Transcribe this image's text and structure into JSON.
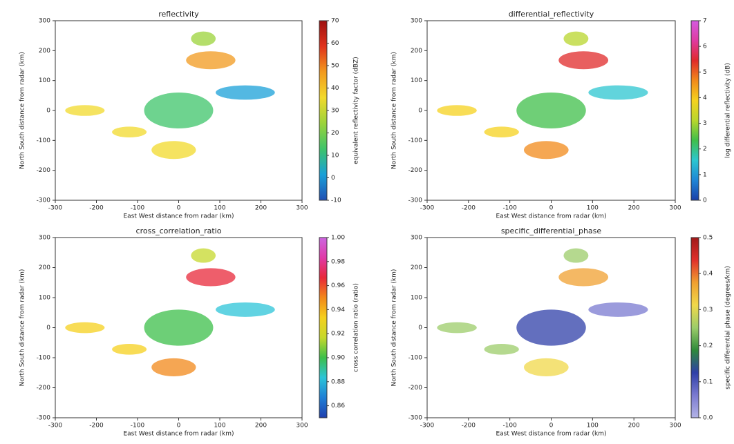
{
  "chart_data": [
    {
      "type": "radar",
      "title": "reflectivity",
      "xlabel": "East West distance from radar (km)",
      "ylabel": "North South distance from radar (km)",
      "xlim": [
        -300,
        300
      ],
      "ylim": [
        -300,
        300
      ],
      "xticks": [
        -300,
        -200,
        -100,
        0,
        100,
        200,
        300
      ],
      "yticks": [
        -300,
        -200,
        -100,
        0,
        100,
        200,
        300
      ],
      "colorbar": {
        "label": "equivalent reflectivity factor (dBZ)",
        "lim": [
          -10,
          70
        ],
        "ticks": [
          -10,
          0,
          10,
          20,
          30,
          40,
          50,
          60,
          70
        ],
        "colormap": [
          "#1f4fb4",
          "#19a0d8",
          "#3ec46a",
          "#9bd33a",
          "#f2d92b",
          "#f29a1e",
          "#e0321c",
          "#9e1010"
        ]
      }
    },
    {
      "type": "radar",
      "title": "differential_reflectivity",
      "xlabel": "East West distance from radar (km)",
      "ylabel": "North South distance from radar (km)",
      "xlim": [
        -300,
        300
      ],
      "ylim": [
        -300,
        300
      ],
      "xticks": [
        -300,
        -200,
        -100,
        0,
        100,
        200,
        300
      ],
      "yticks": [
        -300,
        -200,
        -100,
        0,
        100,
        200,
        300
      ],
      "colorbar": {
        "label": "log differential reflectivity (dB)",
        "lim": [
          0,
          7
        ],
        "ticks": [
          0,
          1,
          2,
          3,
          4,
          5,
          6,
          7
        ],
        "colormap": [
          "#1a3fa8",
          "#1f86d6",
          "#2cc6d0",
          "#3fbf4a",
          "#b8d62c",
          "#f5d21e",
          "#f28a1a",
          "#e02a2a",
          "#e03aa0",
          "#d45ae0"
        ]
      }
    },
    {
      "type": "radar",
      "title": "cross_correlation_ratio",
      "xlabel": "East West distance from radar (km)",
      "ylabel": "North South distance from radar (km)",
      "xlim": [
        -300,
        300
      ],
      "ylim": [
        -300,
        300
      ],
      "xticks": [
        -300,
        -200,
        -100,
        0,
        100,
        200,
        300
      ],
      "yticks": [
        -300,
        -200,
        -100,
        0,
        100,
        200,
        300
      ],
      "colorbar": {
        "label": "cross correlation ratio (ratio)",
        "lim": [
          0.85,
          1.0
        ],
        "ticks": [
          0.86,
          0.88,
          {
            "value": 0.9,
            "label": "0.90"
          },
          0.92,
          0.94,
          0.96,
          0.98,
          {
            "value": 1.0,
            "label": "1.00"
          }
        ],
        "colormap": [
          "#1f3fae",
          "#1f7fd6",
          "#2cc4d8",
          "#3cbf4a",
          "#c6d82c",
          "#f5d01e",
          "#f2881a",
          "#e8283a",
          "#e03aa8",
          "#cc66e0"
        ]
      }
    },
    {
      "type": "radar",
      "title": "specific_differential_phase",
      "xlabel": "East West distance from radar (km)",
      "ylabel": "North South distance from radar (km)",
      "xlim": [
        -300,
        300
      ],
      "ylim": [
        -300,
        300
      ],
      "xticks": [
        -300,
        -200,
        -100,
        0,
        100,
        200,
        300
      ],
      "yticks": [
        -300,
        -200,
        -100,
        0,
        100,
        200,
        300
      ],
      "colorbar": {
        "label": "specific differential phase (degrees/km)",
        "lim": [
          0,
          0.5
        ],
        "ticks": [
          {
            "value": 0,
            "label": "0.0"
          },
          0.1,
          0.2,
          0.3,
          0.4,
          0.5
        ],
        "colormap": [
          "#b3b3e6",
          "#7a7ad0",
          "#2f3fa8",
          "#2f8a3a",
          "#9ccc6a",
          "#f0d84a",
          "#f0a030",
          "#e0302a",
          "#a01a1a"
        ]
      }
    }
  ]
}
